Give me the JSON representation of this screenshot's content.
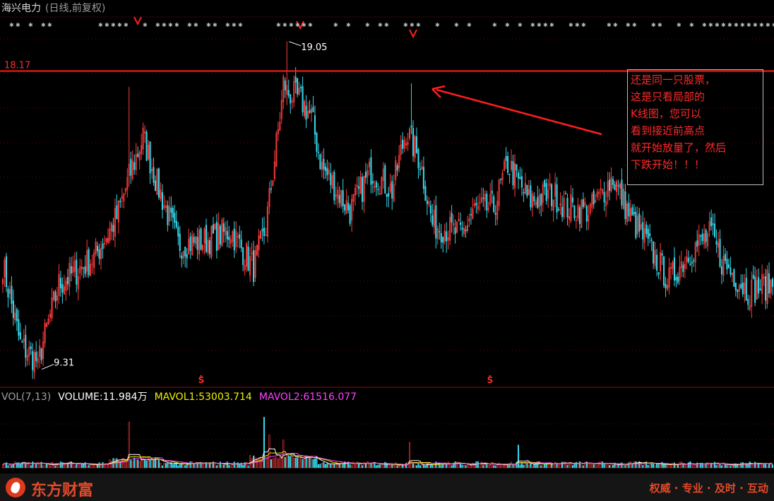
{
  "header": {
    "stock_name": "海兴电力",
    "subtitle": "(日线,前复权)"
  },
  "chart_data": {
    "type": "candlestick",
    "price_ylim": [
      8.9,
      19.7
    ],
    "max_label": "19.05",
    "min_label": "9.31",
    "resistance_level": 18.17,
    "resistance_label": "18.17",
    "event_marker": "S̊",
    "up_color": "#ff3c3c",
    "down_color": "#36d6e8",
    "key_points": [
      {
        "bar": 0,
        "close": 12.4
      },
      {
        "bar": 10,
        "close": 10.0
      },
      {
        "bar": 20,
        "close": 9.5
      },
      {
        "bar": 32,
        "close": 11.8
      },
      {
        "bar": 52,
        "close": 12.6
      },
      {
        "bar": 65,
        "close": 13.8
      },
      {
        "bar": 72,
        "close": 15.0
      },
      {
        "bar": 80,
        "close": 16.2
      },
      {
        "bar": 88,
        "close": 14.8
      },
      {
        "bar": 100,
        "close": 13.0
      },
      {
        "bar": 115,
        "close": 13.1
      },
      {
        "bar": 130,
        "close": 13.4
      },
      {
        "bar": 143,
        "close": 12.3
      },
      {
        "bar": 150,
        "close": 13.5
      },
      {
        "bar": 160,
        "close": 17.6
      },
      {
        "bar": 170,
        "close": 17.3
      },
      {
        "bar": 176,
        "close": 16.8
      },
      {
        "bar": 182,
        "close": 15.3
      },
      {
        "bar": 192,
        "close": 14.5
      },
      {
        "bar": 198,
        "close": 14.0
      },
      {
        "bar": 210,
        "close": 15.2
      },
      {
        "bar": 222,
        "close": 14.6
      },
      {
        "bar": 230,
        "close": 16.4
      },
      {
        "bar": 238,
        "close": 15.5
      },
      {
        "bar": 245,
        "close": 13.6
      },
      {
        "bar": 262,
        "close": 13.3
      },
      {
        "bar": 268,
        "close": 14.0
      },
      {
        "bar": 280,
        "close": 14.1
      },
      {
        "bar": 288,
        "close": 15.4
      },
      {
        "bar": 300,
        "close": 14.3
      },
      {
        "bar": 314,
        "close": 14.5
      },
      {
        "bar": 322,
        "close": 14.1
      },
      {
        "bar": 335,
        "close": 14.0
      },
      {
        "bar": 348,
        "close": 15.0
      },
      {
        "bar": 358,
        "close": 13.8
      },
      {
        "bar": 370,
        "close": 12.8
      },
      {
        "bar": 380,
        "close": 11.9
      },
      {
        "bar": 392,
        "close": 12.8
      },
      {
        "bar": 404,
        "close": 13.3
      },
      {
        "bar": 410,
        "close": 12.5
      },
      {
        "bar": 425,
        "close": 11.6
      },
      {
        "bar": 437,
        "close": 11.8
      }
    ],
    "volume_spikes": [
      {
        "bar": 72,
        "vol": 3.6
      },
      {
        "bar": 149,
        "vol": 4.0
      },
      {
        "bar": 152,
        "vol": 2.6
      },
      {
        "bar": 160,
        "vol": 2.2
      },
      {
        "bar": 232,
        "vol": 2.0
      },
      {
        "bar": 294,
        "vol": 1.8
      }
    ],
    "volume": {
      "label": "VOL(7,13)",
      "volume_text": "VOLUME:11.984万",
      "mavol1_text": "MAVOL1:53003.714",
      "mavol2_text": "MAVOL2:61516.077",
      "volume_color": "#ffffff",
      "mavol1_color": "#f0f000",
      "mavol2_color": "#ff40ff"
    }
  },
  "annotation": {
    "lines": [
      "还是同一只股票，",
      "这是只看局部的",
      "K线图，您可以",
      "看到接近前高点",
      "就开始放量了，然后",
      "下跌开始！！！"
    ],
    "color": "#ff2a2a"
  },
  "footer": {
    "brand": "东方财富",
    "slogan": "权威 · 专业 · 及时 · 互动"
  }
}
